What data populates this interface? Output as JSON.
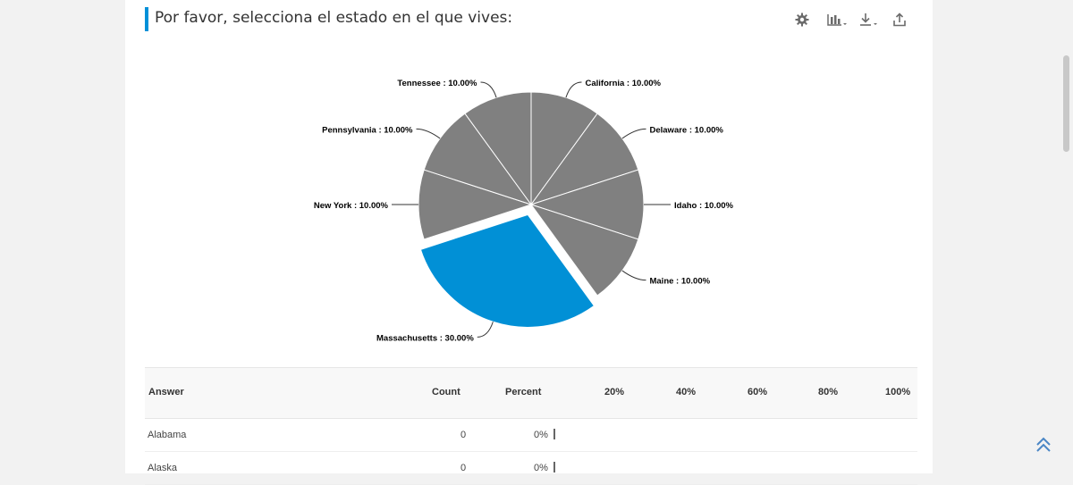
{
  "question": {
    "title": "Por favor, selecciona el estado en el que vives:"
  },
  "toolbar": [
    {
      "name": "settings-icon"
    },
    {
      "name": "chart-type-icon"
    },
    {
      "name": "download-icon"
    },
    {
      "name": "share-icon"
    }
  ],
  "colors": {
    "accent": "#0090d8",
    "slice": "#808080",
    "highlight": "#0190d6"
  },
  "chart_data": {
    "type": "pie",
    "title": "",
    "exploded": "Massachusetts",
    "slices": [
      {
        "label": "California",
        "value": 10.0,
        "display": "California : 10.00%"
      },
      {
        "label": "Delaware",
        "value": 10.0,
        "display": "Delaware : 10.00%"
      },
      {
        "label": "Idaho",
        "value": 10.0,
        "display": "Idaho : 10.00%"
      },
      {
        "label": "Maine",
        "value": 10.0,
        "display": "Maine : 10.00%"
      },
      {
        "label": "Massachusetts",
        "value": 30.0,
        "display": "Massachusetts : 30.00%"
      },
      {
        "label": "New York",
        "value": 10.0,
        "display": "New York : 10.00%"
      },
      {
        "label": "Pennsylvania",
        "value": 10.0,
        "display": "Pennsylvania : 10.00%"
      },
      {
        "label": "Tennessee",
        "value": 10.0,
        "display": "Tennessee : 10.00%"
      }
    ]
  },
  "table": {
    "headers": {
      "answer": "Answer",
      "count": "Count",
      "percent": "Percent"
    },
    "scale": [
      "20%",
      "40%",
      "60%",
      "80%",
      "100%"
    ],
    "rows": [
      {
        "answer": "Alabama",
        "count": "0",
        "percent": "0%",
        "fraction": 0
      },
      {
        "answer": "Alaska",
        "count": "0",
        "percent": "0%",
        "fraction": 0
      }
    ]
  }
}
